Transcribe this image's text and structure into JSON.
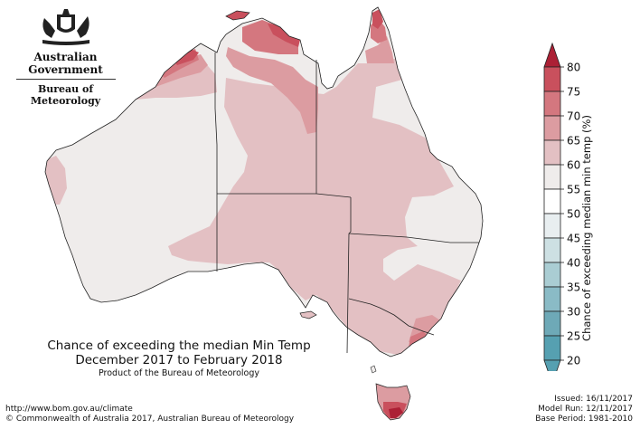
{
  "header": {
    "org_name": "Australian Government",
    "bureau_name": "Bureau of Meteorology",
    "crest_icon": "coat-of-arms-icon"
  },
  "map": {
    "title_line1": "Chance of exceeding the median Min Temp",
    "title_line2": "December 2017 to February 2018",
    "product_note": "Product of the Bureau of Meteorology"
  },
  "legend": {
    "title": "Chance of exceeding median min temp (%)",
    "ticks": [
      "80",
      "75",
      "70",
      "65",
      "60",
      "55",
      "50",
      "45",
      "40",
      "35",
      "30",
      "25",
      "20"
    ],
    "colors": [
      "#ac2035",
      "#c9505d",
      "#d4777f",
      "#dc9ca1",
      "#e3c0c3",
      "#efeceb",
      "#ffffff",
      "#e8eef0",
      "#cde0e3",
      "#aacdd3",
      "#8abbc6",
      "#6ea9b7",
      "#56a0b1"
    ]
  },
  "footer": {
    "url": "http://www.bom.gov.au/climate",
    "copyright": "© Commonwealth of Australia 2017, Australian Bureau of Meteorology",
    "issued": "Issued: 16/11/2017",
    "model_run": "Model Run: 12/11/2017",
    "base_period": "Base Period: 1981-2010"
  }
}
